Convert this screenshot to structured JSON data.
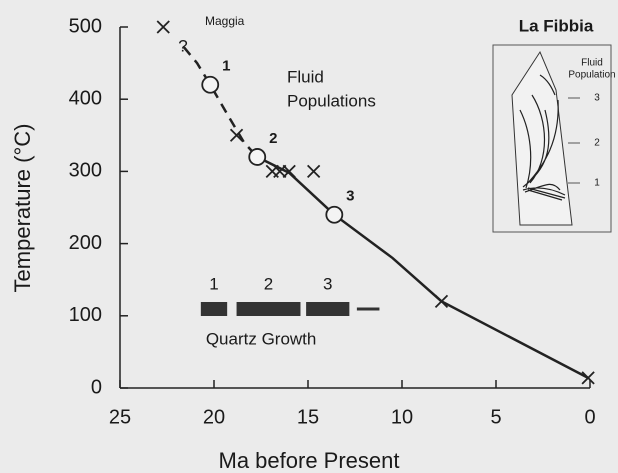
{
  "chart_data": {
    "type": "line",
    "x_label": "Ma before Present",
    "y_label": "Temperature (°C)",
    "xlim": [
      25,
      0
    ],
    "ylim": [
      0,
      500
    ],
    "xticks": [
      25,
      20,
      15,
      10,
      5,
      0
    ],
    "yticks": [
      0,
      100,
      200,
      300,
      400,
      500
    ],
    "series": [
      {
        "color": "#222222",
        "style": "dashed",
        "x": [
          21.6,
          20.9,
          20.2,
          19.2,
          18.4,
          17.7
        ],
        "values": [
          472,
          450,
          420,
          375,
          340,
          320
        ]
      },
      {
        "color": "#222222",
        "style": "solid",
        "x": [
          17.7,
          16.0,
          13.6,
          10.5,
          7.9,
          0.1
        ],
        "values": [
          320,
          298,
          240,
          180,
          120,
          14
        ]
      }
    ],
    "cooling_points": {
      "x": [
        22.7,
        18.8,
        16.9,
        16.5,
        16.0,
        14.7,
        7.9,
        0.1
      ],
      "values": [
        500,
        350,
        300,
        300,
        300,
        300,
        120,
        14
      ]
    },
    "fluid_populations": {
      "labels": [
        "1",
        "2",
        "3"
      ],
      "x": [
        20.2,
        17.7,
        13.6
      ],
      "values": [
        420,
        320,
        240
      ]
    },
    "annotations": {
      "maggia": "Maggia",
      "question": "?",
      "fluid_populations": [
        "Fluid",
        "Populations"
      ]
    },
    "quartz_growth": {
      "title": "Quartz Growth",
      "color": "#333333",
      "bars": [
        {
          "label": "1",
          "start": 20.7,
          "end": 19.3
        },
        {
          "label": "2",
          "start": 18.8,
          "end": 15.4
        },
        {
          "label": "3",
          "start": 15.1,
          "end": 12.8
        },
        {
          "label": null,
          "start": 12.4,
          "end": 11.2
        }
      ]
    },
    "inset": {
      "title": "La Fibbia",
      "legend": [
        "Fluid",
        "Population"
      ],
      "levels": [
        "3",
        "2",
        "1"
      ]
    }
  }
}
